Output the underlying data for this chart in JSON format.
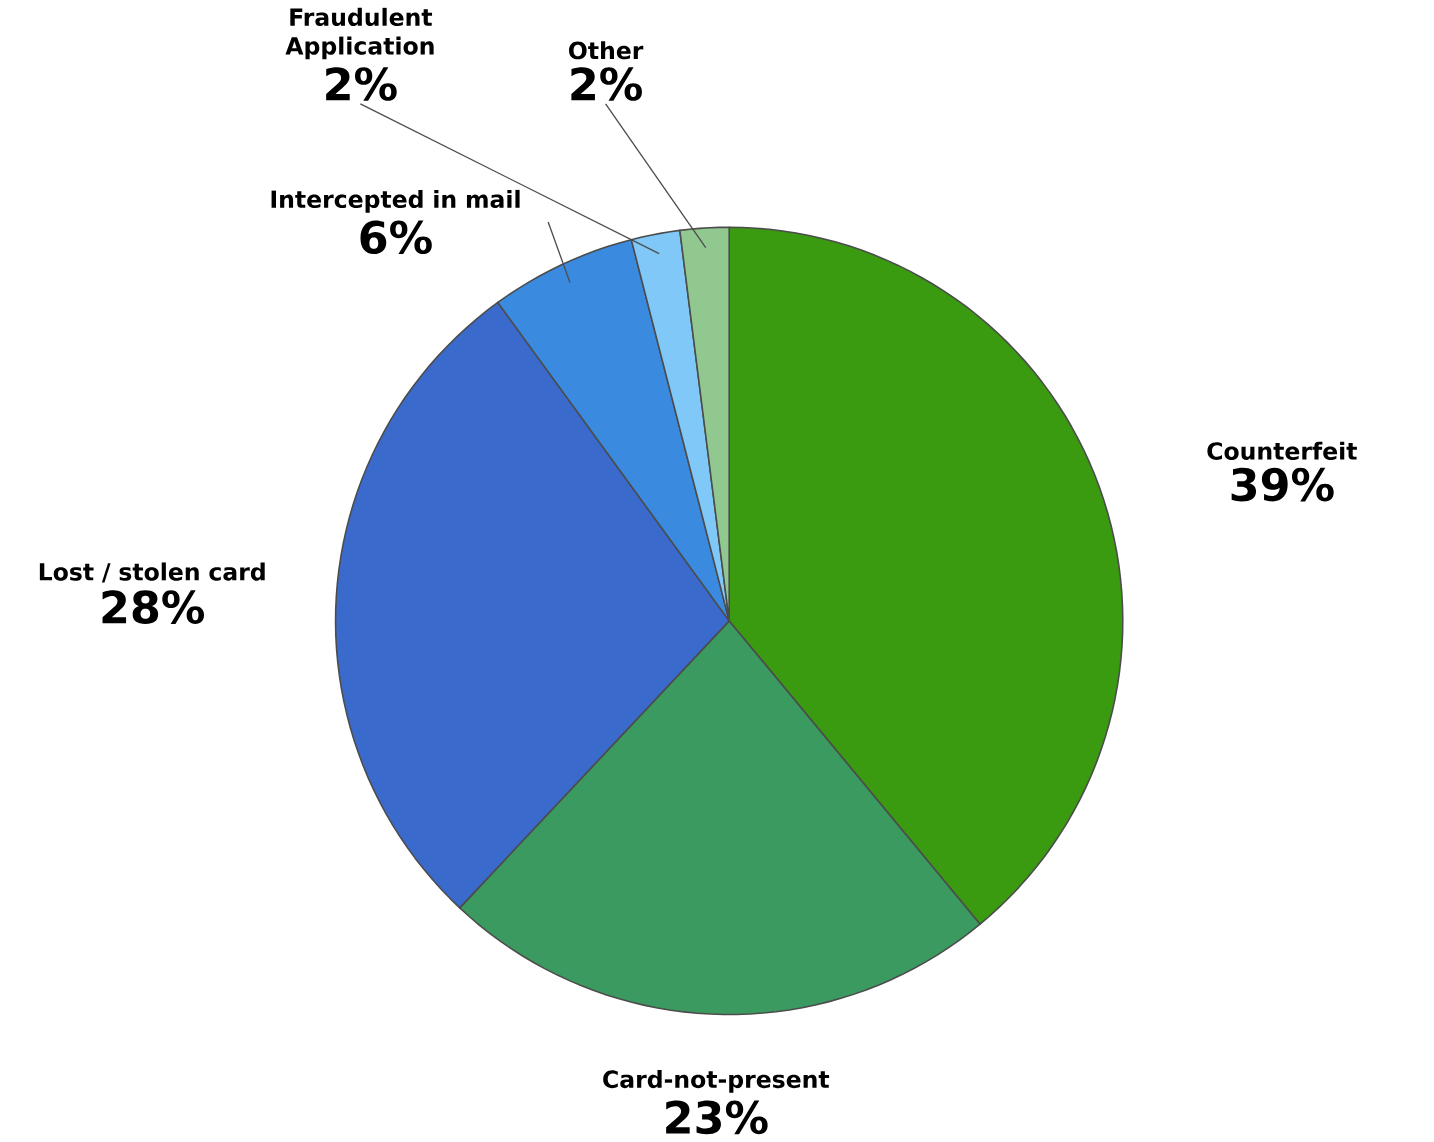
{
  "chart_data": {
    "type": "pie",
    "categories": [
      "Counterfeit",
      "Card-not-present",
      "Lost / stolen card",
      "Intercepted in mail",
      "Fraudulent Application",
      "Other"
    ],
    "values": [
      39,
      23,
      28,
      6,
      2,
      2
    ],
    "value_labels": [
      "39%",
      "23%",
      "28%",
      "6%",
      "2%",
      "2%"
    ],
    "colors": [
      "#3a9a10",
      "#3a9a60",
      "#3a6acc",
      "#3a8ae0",
      "#80c8f8",
      "#90c890"
    ]
  }
}
